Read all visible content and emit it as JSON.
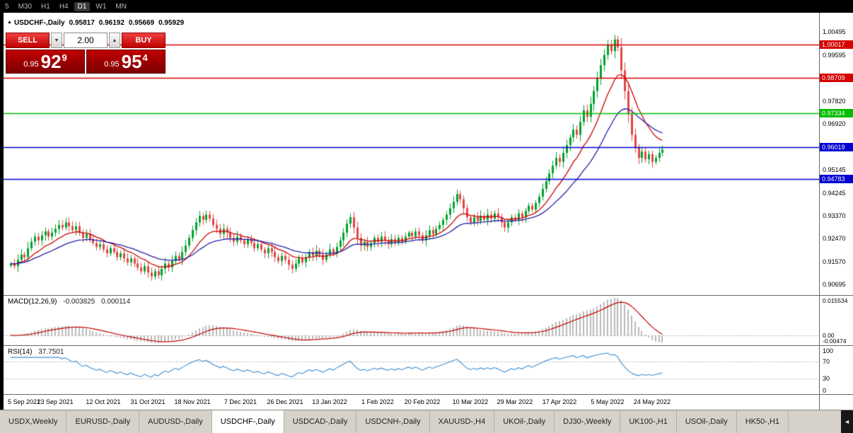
{
  "toolbar": {
    "timeframes": [
      {
        "label": "5"
      },
      {
        "label": "M30"
      },
      {
        "label": "H1"
      },
      {
        "label": "H4"
      },
      {
        "label": "D1",
        "active": true
      },
      {
        "label": "W1"
      },
      {
        "label": "MN"
      }
    ]
  },
  "quote": {
    "collapse_icon": "▲",
    "symbol": "USDCHF-,Daily",
    "open": "0.95817",
    "high": "0.96192",
    "low": "0.95669",
    "close": "0.95929"
  },
  "trade_panel": {
    "sell_label": "SELL",
    "buy_label": "BUY",
    "volume": "2.00",
    "spinner_down": "▼",
    "spinner_up": "▲",
    "sell_price": {
      "prefix": "0.95",
      "big": "92",
      "sup": "9"
    },
    "buy_price": {
      "prefix": "0.95",
      "big": "95",
      "sup": "4"
    }
  },
  "chart_data": [
    {
      "type": "candlestick",
      "title": "USDCHF-,Daily",
      "x_tick_labels": [
        "5 Sep 2021",
        "23 Sep 2021",
        "12 Oct 2021",
        "31 Oct 2021",
        "18 Nov 2021",
        "7 Dec 2021",
        "26 Dec 2021",
        "13 Jan 2022",
        "1 Feb 2022",
        "20 Feb 2022",
        "10 Mar 2022",
        "29 Mar 2022",
        "17 Apr 2022",
        "5 May 2022",
        "24 May 2022"
      ],
      "ylim": [
        0.9028,
        1.0124
      ],
      "y_ticks": [
        "1.00495",
        "0.99595",
        "0.97820",
        "0.96920",
        "0.95145",
        "0.94245",
        "0.93370",
        "0.92470",
        "0.91570",
        "0.90695"
      ],
      "levels": [
        {
          "price": "1.00017",
          "color": "#d40000",
          "width": 1.4
        },
        {
          "price": "0.98709",
          "color": "#d40000",
          "width": 1.4
        },
        {
          "price": "0.97334",
          "color": "#00bd00",
          "width": 1.6
        },
        {
          "price": "0.96019",
          "color": "#0000d0",
          "width": 1.6
        },
        {
          "price": "0.94783",
          "color": "#0000d0",
          "width": 1.6
        }
      ],
      "up_color": "#00a12e",
      "down_color": "#e24444",
      "ma_fast_color": "#cc0000",
      "ma_slow_color": "#2222aa",
      "ma_fast_period": 12,
      "ma_slow_period": 26,
      "closes": [
        0.915,
        0.914,
        0.9165,
        0.9185,
        0.9175,
        0.921,
        0.9235,
        0.9255,
        0.924,
        0.926,
        0.9275,
        0.9255,
        0.927,
        0.9285,
        0.93,
        0.929,
        0.931,
        0.9295,
        0.928,
        0.9295,
        0.927,
        0.925,
        0.9265,
        0.9245,
        0.923,
        0.9215,
        0.9225,
        0.9205,
        0.919,
        0.921,
        0.9195,
        0.9175,
        0.919,
        0.917,
        0.9155,
        0.917,
        0.915,
        0.9135,
        0.912,
        0.914,
        0.9115,
        0.91,
        0.912,
        0.9105,
        0.913,
        0.915,
        0.9135,
        0.916,
        0.918,
        0.9165,
        0.9195,
        0.922,
        0.925,
        0.928,
        0.931,
        0.9335,
        0.932,
        0.934,
        0.9325,
        0.93,
        0.9285,
        0.9265,
        0.9285,
        0.927,
        0.925,
        0.9235,
        0.9255,
        0.924,
        0.9225,
        0.9245,
        0.923,
        0.921,
        0.9225,
        0.9205,
        0.919,
        0.921,
        0.9195,
        0.9175,
        0.916,
        0.918,
        0.9165,
        0.9145,
        0.913,
        0.915,
        0.917,
        0.9155,
        0.9175,
        0.9195,
        0.918,
        0.92,
        0.9185,
        0.9165,
        0.9185,
        0.9205,
        0.919,
        0.9215,
        0.924,
        0.927,
        0.9305,
        0.933,
        0.929,
        0.925,
        0.922,
        0.9235,
        0.9215,
        0.923,
        0.925,
        0.9235,
        0.9255,
        0.924,
        0.9225,
        0.9245,
        0.923,
        0.925,
        0.9235,
        0.9255,
        0.927,
        0.9255,
        0.9275,
        0.926,
        0.924,
        0.926,
        0.928,
        0.9265,
        0.9285,
        0.93,
        0.932,
        0.934,
        0.9365,
        0.939,
        0.942,
        0.94,
        0.9365,
        0.933,
        0.931,
        0.933,
        0.9315,
        0.9335,
        0.932,
        0.934,
        0.9325,
        0.9345,
        0.933,
        0.931,
        0.929,
        0.931,
        0.933,
        0.932,
        0.9345,
        0.933,
        0.9355,
        0.9375,
        0.936,
        0.9385,
        0.941,
        0.944,
        0.947,
        0.95,
        0.953,
        0.956,
        0.9545,
        0.958,
        0.961,
        0.964,
        0.967,
        0.965,
        0.97,
        0.9745,
        0.972,
        0.977,
        0.982,
        0.987,
        0.992,
        0.996,
        1.0,
        0.9975,
        1.002,
        0.999,
        0.99,
        0.982,
        0.973,
        0.965,
        0.96,
        0.956,
        0.9585,
        0.9555,
        0.9575,
        0.9545,
        0.956,
        0.958,
        0.9593
      ]
    },
    {
      "type": "bar",
      "name": "MACD",
      "label_name": "MACD(12,26,9)",
      "value_main": "-0.003825",
      "value_signal": "0.000114",
      "params": {
        "fast": 12,
        "slow": 26,
        "signal": 9
      },
      "y_ticks": [
        "0.015534",
        "0.00",
        "-0.00474"
      ],
      "hist_color": "#b9b9b9",
      "signal_color": "#c40000"
    },
    {
      "type": "line",
      "name": "RSI",
      "label_name": "RSI(14)",
      "value": "37.7501",
      "period": 14,
      "levels": [
        70,
        30
      ],
      "ylim": [
        0,
        100
      ],
      "y_ticks": [
        "100",
        "70",
        "30",
        "0"
      ],
      "color": "#3f8fd2"
    }
  ],
  "tabs": {
    "scroll_left_icon": "◄",
    "items": [
      {
        "label": "USDX,Weekly"
      },
      {
        "label": "EURUSD-,Daily"
      },
      {
        "label": "AUDUSD-,Daily"
      },
      {
        "label": "USDCHF-,Daily",
        "active": true
      },
      {
        "label": "USDCAD-,Daily"
      },
      {
        "label": "USDCNH-,Daily"
      },
      {
        "label": "XAUUSD-,H4"
      },
      {
        "label": "UKOil-,Daily"
      },
      {
        "label": "DJ30-,Weekly"
      },
      {
        "label": "UK100-,H1"
      },
      {
        "label": "USOil-,Daily"
      },
      {
        "label": "HK50-,H1"
      }
    ]
  }
}
